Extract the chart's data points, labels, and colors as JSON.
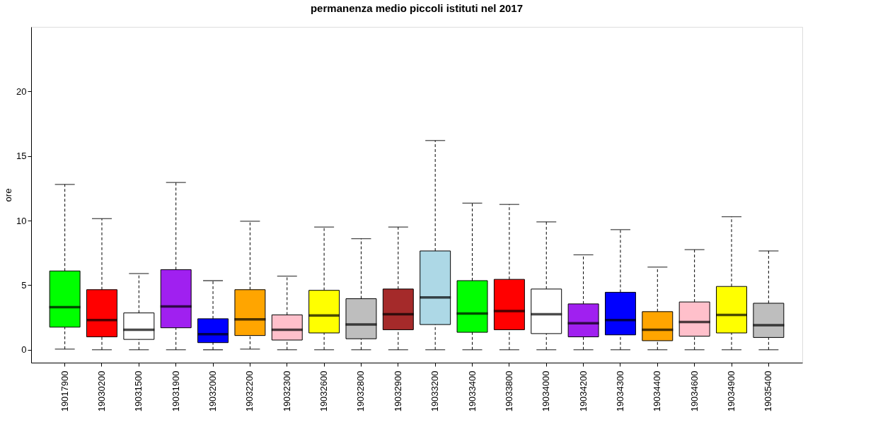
{
  "chart_data": {
    "type": "box",
    "title": "permanenza medio piccoli istituti nel 2017",
    "ylabel": "ore",
    "categories": [
      "19017900",
      "19030200",
      "19031500",
      "19031900",
      "19032000",
      "19032200",
      "19032300",
      "19032600",
      "19032800",
      "19032900",
      "19033200",
      "19033400",
      "19033800",
      "19034000",
      "19034200",
      "19034300",
      "19034400",
      "19034600",
      "19034900",
      "19035400"
    ],
    "colors": [
      "#00ff00",
      "#ff0000",
      "#ffffff",
      "#a020f0",
      "#0000ff",
      "#ffa500",
      "#ffc0cb",
      "#ffff00",
      "#bebebe",
      "#a52a2a",
      "#add8e6",
      "#00ff00",
      "#ff0000",
      "#ffffff",
      "#a020f0",
      "#0000ff",
      "#ffa500",
      "#ffc0cb",
      "#ffff00",
      "#bebebe"
    ],
    "boxes": [
      {
        "low": 0.05,
        "q1": 1.75,
        "median": 3.3,
        "q3": 6.1,
        "high": 12.8
      },
      {
        "low": 0,
        "q1": 1.0,
        "median": 2.3,
        "q3": 4.65,
        "high": 10.15
      },
      {
        "low": 0,
        "q1": 0.8,
        "median": 1.55,
        "q3": 2.85,
        "high": 5.9
      },
      {
        "low": 0,
        "q1": 1.7,
        "median": 3.35,
        "q3": 6.2,
        "high": 12.95
      },
      {
        "low": 0,
        "q1": 0.55,
        "median": 1.2,
        "q3": 2.4,
        "high": 5.35
      },
      {
        "low": 0.05,
        "q1": 1.1,
        "median": 2.35,
        "q3": 4.65,
        "high": 9.95
      },
      {
        "low": 0,
        "q1": 0.75,
        "median": 1.55,
        "q3": 2.7,
        "high": 5.7
      },
      {
        "low": 0,
        "q1": 1.3,
        "median": 2.65,
        "q3": 4.6,
        "high": 9.5
      },
      {
        "low": 0,
        "q1": 0.85,
        "median": 1.95,
        "q3": 3.95,
        "high": 8.6
      },
      {
        "low": 0,
        "q1": 1.55,
        "median": 2.75,
        "q3": 4.7,
        "high": 9.5
      },
      {
        "low": 0,
        "q1": 1.95,
        "median": 4.05,
        "q3": 7.65,
        "high": 16.2
      },
      {
        "low": 0,
        "q1": 1.35,
        "median": 2.8,
        "q3": 5.35,
        "high": 11.35
      },
      {
        "low": 0,
        "q1": 1.55,
        "median": 3.0,
        "q3": 5.45,
        "high": 11.25
      },
      {
        "low": 0,
        "q1": 1.25,
        "median": 2.75,
        "q3": 4.7,
        "high": 9.9
      },
      {
        "low": 0,
        "q1": 1.0,
        "median": 2.05,
        "q3": 3.55,
        "high": 7.35
      },
      {
        "low": 0,
        "q1": 1.15,
        "median": 2.3,
        "q3": 4.45,
        "high": 9.3
      },
      {
        "low": 0,
        "q1": 0.7,
        "median": 1.55,
        "q3": 2.95,
        "high": 6.4
      },
      {
        "low": 0,
        "q1": 1.05,
        "median": 2.15,
        "q3": 3.7,
        "high": 7.75
      },
      {
        "low": 0,
        "q1": 1.3,
        "median": 2.7,
        "q3": 4.9,
        "high": 10.3
      },
      {
        "low": 0,
        "q1": 0.95,
        "median": 1.9,
        "q3": 3.6,
        "high": 7.65
      }
    ],
    "ylim": [
      -1,
      25
    ],
    "yticks": [
      0,
      5,
      10,
      15,
      20
    ],
    "grid": false
  }
}
